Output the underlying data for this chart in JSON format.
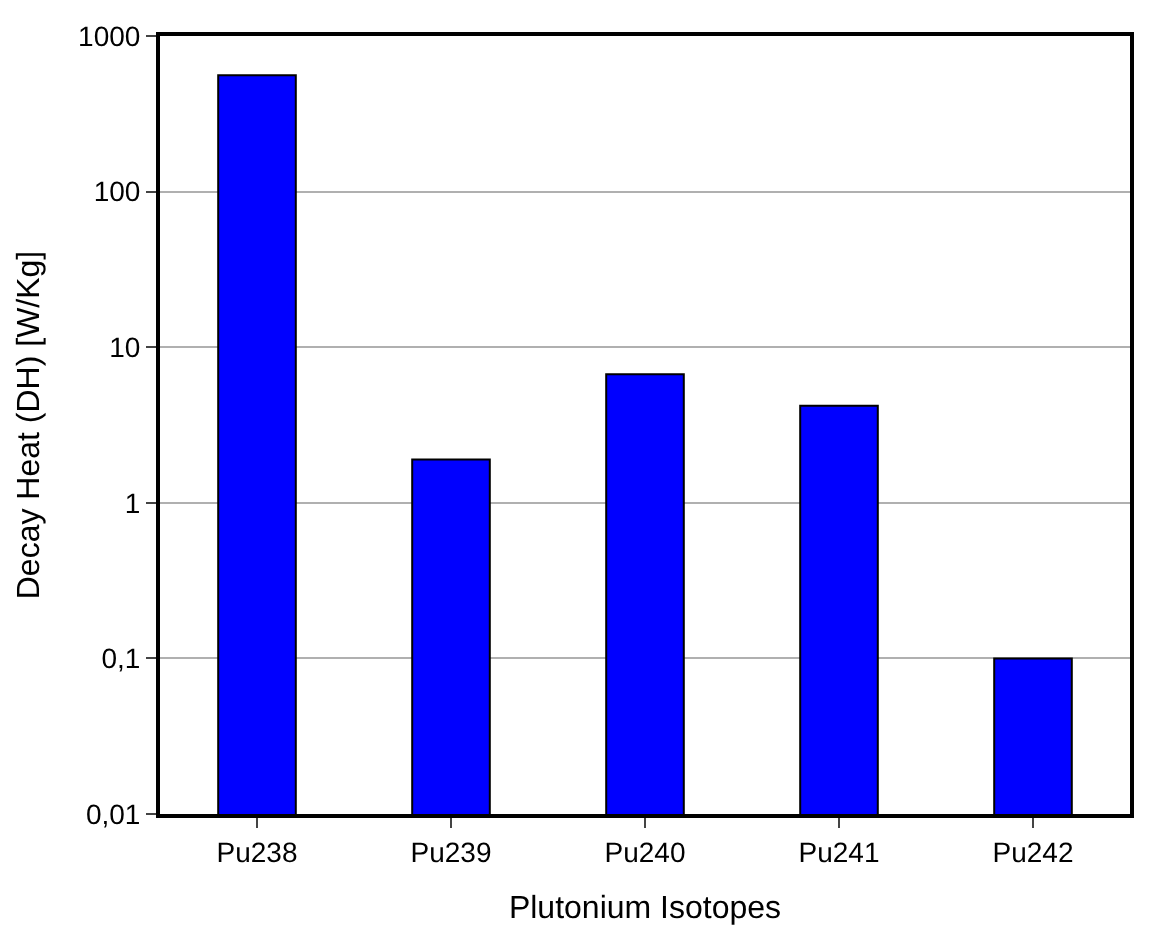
{
  "chart_data": {
    "type": "bar",
    "xlabel": "Plutonium Isotopes",
    "ylabel": "Decay Heat (DH) [W/Kg]",
    "categories": [
      "Pu238",
      "Pu239",
      "Pu240",
      "Pu241",
      "Pu242"
    ],
    "values": [
      560,
      1.9,
      6.7,
      4.2,
      0.1
    ],
    "color": "#0000ff",
    "log": true,
    "ylim": [
      0.01,
      1000
    ],
    "yticks": [
      {
        "value": 0.01,
        "label": "0,01"
      },
      {
        "value": 0.1,
        "label": "0,1"
      },
      1,
      10,
      100,
      1000
    ],
    "grid": "y",
    "legend": false
  }
}
